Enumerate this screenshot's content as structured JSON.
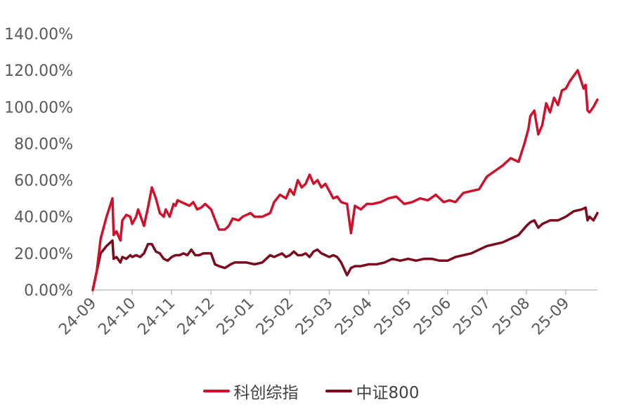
{
  "chart_data": {
    "type": "line",
    "title": "",
    "xlabel": "",
    "ylabel": "",
    "ylim": [
      0,
      140
    ],
    "y_ticks": [
      "0.00%",
      "20.00%",
      "40.00%",
      "60.00%",
      "80.00%",
      "100.00%",
      "120.00%",
      "140.00%"
    ],
    "x_ticks": [
      "24-09",
      "24-10",
      "24-11",
      "24-12",
      "25-01",
      "25-02",
      "25-03",
      "25-04",
      "25-05",
      "25-06",
      "25-07",
      "25-08",
      "25-09"
    ],
    "x_range": [
      0,
      12.8
    ],
    "series": [
      {
        "name": "科创综指",
        "color": "#d0112b",
        "x": [
          0,
          0.1,
          0.2,
          0.35,
          0.5,
          0.53,
          0.6,
          0.7,
          0.75,
          0.85,
          0.95,
          1.0,
          1.1,
          1.15,
          1.25,
          1.3,
          1.4,
          1.5,
          1.6,
          1.7,
          1.8,
          1.85,
          1.95,
          2.05,
          2.1,
          2.15,
          2.25,
          2.35,
          2.45,
          2.55,
          2.65,
          2.75,
          2.85,
          3.0,
          3.2,
          3.35,
          3.45,
          3.55,
          3.7,
          3.8,
          3.9,
          4.0,
          4.1,
          4.3,
          4.5,
          4.6,
          4.75,
          4.9,
          5.0,
          5.1,
          5.2,
          5.3,
          5.4,
          5.5,
          5.6,
          5.7,
          5.8,
          5.9,
          6.0,
          6.1,
          6.2,
          6.3,
          6.45,
          6.55,
          6.65,
          6.8,
          6.95,
          7.1,
          7.3,
          7.5,
          7.7,
          7.9,
          8.1,
          8.3,
          8.5,
          8.7,
          8.9,
          9.05,
          9.2,
          9.4,
          9.6,
          9.8,
          10.0,
          10.2,
          10.4,
          10.6,
          10.8,
          10.95,
          11.05,
          11.1,
          11.2,
          11.3,
          11.4,
          11.5,
          11.6,
          11.7,
          11.8,
          11.9,
          12.0,
          12.1,
          12.2,
          12.3,
          12.45,
          12.5,
          12.55,
          12.6,
          12.7,
          12.8
        ],
        "values": [
          0,
          10,
          28,
          40,
          50,
          30,
          32,
          27,
          38,
          41,
          40,
          36,
          40,
          44,
          38,
          35,
          45,
          56,
          50,
          42,
          40,
          44,
          40,
          47,
          46,
          49,
          48,
          47,
          46,
          48,
          44,
          45,
          47,
          44,
          33,
          33,
          35,
          39,
          38,
          40,
          41,
          42,
          40,
          40,
          42,
          48,
          52,
          50,
          55,
          52,
          60,
          56,
          58,
          63,
          58,
          60,
          56,
          58,
          54,
          50,
          51,
          48,
          47,
          31,
          46,
          44,
          47,
          47,
          48,
          50,
          51,
          47,
          48,
          50,
          49,
          52,
          48,
          49,
          48,
          53,
          54,
          55,
          62,
          65,
          68,
          72,
          70,
          80,
          88,
          95,
          98,
          85,
          90,
          102,
          97,
          105,
          101,
          109,
          110,
          114,
          117,
          120,
          110,
          112,
          98,
          97,
          100,
          104
        ]
      },
      {
        "name": "中证800",
        "color": "#7c0a1e",
        "x": [
          0,
          0.1,
          0.2,
          0.35,
          0.5,
          0.53,
          0.6,
          0.7,
          0.75,
          0.85,
          0.95,
          1.0,
          1.1,
          1.2,
          1.3,
          1.4,
          1.5,
          1.6,
          1.7,
          1.8,
          1.9,
          2.0,
          2.1,
          2.2,
          2.3,
          2.4,
          2.5,
          2.6,
          2.7,
          2.8,
          2.9,
          3.0,
          3.1,
          3.2,
          3.35,
          3.5,
          3.6,
          3.7,
          3.9,
          4.1,
          4.3,
          4.5,
          4.6,
          4.7,
          4.8,
          4.9,
          5.0,
          5.1,
          5.2,
          5.3,
          5.4,
          5.5,
          5.6,
          5.7,
          5.8,
          5.9,
          6.0,
          6.1,
          6.2,
          6.3,
          6.45,
          6.55,
          6.65,
          6.8,
          7.0,
          7.2,
          7.4,
          7.6,
          7.8,
          8.0,
          8.2,
          8.4,
          8.6,
          8.8,
          9.0,
          9.2,
          9.4,
          9.6,
          9.8,
          10.0,
          10.2,
          10.4,
          10.6,
          10.8,
          11.0,
          11.1,
          11.2,
          11.3,
          11.4,
          11.6,
          11.8,
          12.0,
          12.2,
          12.4,
          12.5,
          12.55,
          12.6,
          12.7,
          12.8
        ],
        "values": [
          0,
          10,
          20,
          24,
          27,
          17,
          18,
          15,
          18,
          17,
          19,
          18,
          19,
          18,
          20,
          25,
          25,
          21,
          20,
          17,
          16,
          18,
          19,
          19,
          20,
          19,
          22,
          19,
          19,
          20,
          20,
          20,
          14,
          13,
          12,
          14,
          15,
          15,
          15,
          14,
          15,
          19,
          18,
          19,
          20,
          18,
          19,
          21,
          19,
          19,
          20,
          18,
          21,
          22,
          20,
          19,
          18,
          19,
          18,
          15,
          8,
          12,
          13,
          13,
          14,
          14,
          15,
          17,
          16,
          17,
          16,
          17,
          17,
          16,
          16,
          18,
          19,
          20,
          22,
          24,
          25,
          26,
          28,
          30,
          35,
          37,
          38,
          34,
          36,
          38,
          38,
          40,
          43,
          44,
          45,
          38,
          40,
          38,
          42
        ]
      }
    ],
    "legend_position": "bottom",
    "grid": false
  }
}
